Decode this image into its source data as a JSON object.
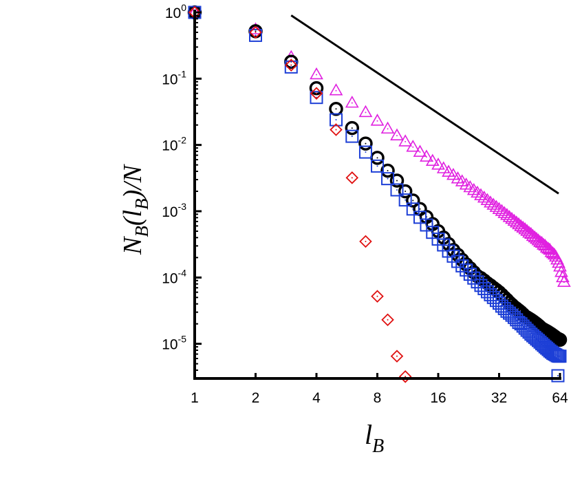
{
  "chart_data": {
    "type": "scatter",
    "xscale": "log2",
    "yscale": "log10",
    "xlim": [
      1,
      64
    ],
    "ylim": [
      3e-06,
      1
    ],
    "xticks": [
      {
        "value": 1,
        "label": "1"
      },
      {
        "value": 2,
        "label": "2"
      },
      {
        "value": 4,
        "label": "4"
      },
      {
        "value": 8,
        "label": "8"
      },
      {
        "value": 16,
        "label": "16"
      },
      {
        "value": 32,
        "label": "32"
      },
      {
        "value": 64,
        "label": "64"
      }
    ],
    "yticks": [
      {
        "value": 1,
        "base": "10",
        "exp": "0"
      },
      {
        "value": 0.1,
        "base": "10",
        "exp": "-1"
      },
      {
        "value": 0.01,
        "base": "10",
        "exp": "-2"
      },
      {
        "value": 0.001,
        "base": "10",
        "exp": "-3"
      },
      {
        "value": 0.0001,
        "base": "10",
        "exp": "-4"
      },
      {
        "value": 1e-05,
        "base": "10",
        "exp": "-5"
      }
    ],
    "xlabel": {
      "main": "l",
      "sub": "B"
    },
    "ylabel": {
      "p1": "N",
      "p2": "B",
      "p3": "(",
      "p4": "l",
      "p5": "B",
      "p6": ")/N"
    },
    "grid": false,
    "legend": "none",
    "reference_line": {
      "x": [
        3,
        63
      ],
      "y": [
        0.9,
        0.00185
      ],
      "color": "#000000"
    },
    "series": [
      {
        "marker": "triangle",
        "color": "#e020e0",
        "points": [
          [
            1,
            1
          ],
          [
            2,
            0.55
          ],
          [
            3,
            0.21
          ],
          [
            4,
            0.115
          ],
          [
            5,
            0.066
          ],
          [
            6,
            0.043
          ],
          [
            7,
            0.031
          ],
          [
            8,
            0.023
          ],
          [
            9,
            0.0175
          ],
          [
            10,
            0.0138
          ],
          [
            11,
            0.0112
          ],
          [
            12,
            0.0093
          ],
          [
            13,
            0.0078
          ],
          [
            14,
            0.0066
          ],
          [
            15,
            0.0057
          ],
          [
            16,
            0.005
          ],
          [
            17,
            0.0044
          ],
          [
            18,
            0.0039
          ],
          [
            19,
            0.0035
          ],
          [
            20,
            0.0031
          ],
          [
            21,
            0.0028
          ],
          [
            22,
            0.0025
          ],
          [
            23,
            0.00228
          ],
          [
            24,
            0.00207
          ],
          [
            25,
            0.00189
          ],
          [
            26,
            0.00173
          ],
          [
            27,
            0.00159
          ],
          [
            28,
            0.00146
          ],
          [
            29,
            0.00134
          ],
          [
            30,
            0.00124
          ],
          [
            31,
            0.00115
          ],
          [
            32,
            0.00107
          ],
          [
            33,
            0.001
          ],
          [
            34,
            0.00093
          ],
          [
            35,
            0.00087
          ],
          [
            36,
            0.00081
          ],
          [
            37,
            0.00076
          ],
          [
            38,
            0.00071
          ],
          [
            39,
            0.00067
          ],
          [
            40,
            0.00063
          ],
          [
            41,
            0.00059
          ],
          [
            42,
            0.00056
          ],
          [
            43,
            0.00053
          ],
          [
            44,
            0.0005
          ],
          [
            45,
            0.00047
          ],
          [
            46,
            0.00045
          ],
          [
            47,
            0.00042
          ],
          [
            48,
            0.0004
          ],
          [
            49,
            0.00038
          ],
          [
            50,
            0.00036
          ],
          [
            51,
            0.00034
          ],
          [
            52,
            0.00033
          ],
          [
            53,
            0.00031
          ],
          [
            54,
            0.0003
          ],
          [
            55,
            0.00028
          ],
          [
            56,
            0.00027
          ],
          [
            57,
            0.00026
          ],
          [
            58,
            0.00024
          ],
          [
            59,
            0.00023
          ],
          [
            60,
            0.00022
          ],
          [
            61,
            0.000205
          ],
          [
            62,
            0.000185
          ],
          [
            63,
            0.000165
          ],
          [
            64,
            0.000145
          ],
          [
            65,
            0.00012
          ],
          [
            66,
            0.0001
          ],
          [
            67,
            8.5e-05
          ]
        ]
      },
      {
        "marker": "circle",
        "color": "#000000",
        "points": [
          [
            1,
            1
          ],
          [
            2,
            0.52
          ],
          [
            3,
            0.18
          ],
          [
            4,
            0.072
          ],
          [
            5,
            0.035
          ],
          [
            6,
            0.018
          ],
          [
            7,
            0.0105
          ],
          [
            8,
            0.0064
          ],
          [
            9,
            0.0041
          ],
          [
            10,
            0.0029
          ],
          [
            11,
            0.002
          ],
          [
            12,
            0.00145
          ],
          [
            13,
            0.00108
          ],
          [
            14,
            0.00082
          ],
          [
            15,
            0.00064
          ],
          [
            16,
            0.0005
          ],
          [
            17,
            0.0004
          ],
          [
            18,
            0.00032
          ],
          [
            19,
            0.00026
          ],
          [
            20,
            0.00022
          ],
          [
            21,
            0.000185
          ],
          [
            22,
            0.000158
          ],
          [
            23,
            0.000138
          ],
          [
            24,
            0.00012
          ],
          [
            25,
            0.000105
          ],
          [
            26,
            9.8e-05
          ],
          [
            27,
            9e-05
          ],
          [
            28,
            8.2e-05
          ],
          [
            29,
            7.6e-05
          ],
          [
            30,
            7e-05
          ],
          [
            31,
            6.5e-05
          ],
          [
            32,
            6e-05
          ],
          [
            33,
            5.5e-05
          ],
          [
            34,
            5e-05
          ],
          [
            35,
            4.6e-05
          ],
          [
            36,
            4.2e-05
          ],
          [
            37,
            3.9e-05
          ],
          [
            38,
            3.6e-05
          ],
          [
            39,
            3.4e-05
          ],
          [
            40,
            3.2e-05
          ],
          [
            41,
            3e-05
          ],
          [
            42,
            2.8e-05
          ],
          [
            43,
            2.6e-05
          ],
          [
            44,
            2.5e-05
          ],
          [
            45,
            2.4e-05
          ],
          [
            46,
            2.3e-05
          ],
          [
            47,
            2.2e-05
          ],
          [
            48,
            2.1e-05
          ],
          [
            49,
            2e-05
          ],
          [
            50,
            1.9e-05
          ],
          [
            51,
            1.8e-05
          ],
          [
            52,
            1.7e-05
          ],
          [
            53,
            1.65e-05
          ],
          [
            54,
            1.6e-05
          ],
          [
            55,
            1.55e-05
          ],
          [
            56,
            1.5e-05
          ],
          [
            57,
            1.45e-05
          ],
          [
            58,
            1.4e-05
          ],
          [
            59,
            1.35e-05
          ],
          [
            60,
            1.3e-05
          ],
          [
            61,
            1.25e-05
          ],
          [
            62,
            1.2e-05
          ],
          [
            63,
            1.18e-05
          ],
          [
            64,
            1.15e-05
          ]
        ]
      },
      {
        "marker": "square",
        "color": "#1d3fd6",
        "points": [
          [
            1,
            1
          ],
          [
            2,
            0.45
          ],
          [
            3,
            0.15
          ],
          [
            4,
            0.052
          ],
          [
            5,
            0.024
          ],
          [
            6,
            0.0135
          ],
          [
            7,
            0.0078
          ],
          [
            8,
            0.0048
          ],
          [
            9,
            0.0031
          ],
          [
            10,
            0.0021
          ],
          [
            11,
            0.00148
          ],
          [
            12,
            0.00108
          ],
          [
            13,
            0.00081
          ],
          [
            14,
            0.00062
          ],
          [
            15,
            0.00048
          ],
          [
            16,
            0.00038
          ],
          [
            17,
            0.00031
          ],
          [
            18,
            0.00025
          ],
          [
            19,
            0.00021
          ],
          [
            20,
            0.000175
          ],
          [
            21,
            0.00015
          ],
          [
            22,
            0.00013
          ],
          [
            23,
            0.000112
          ],
          [
            24,
            9.8e-05
          ],
          [
            25,
            8.6e-05
          ],
          [
            26,
            7.6e-05
          ],
          [
            27,
            6.8e-05
          ],
          [
            28,
            6.1e-05
          ],
          [
            29,
            5.5e-05
          ],
          [
            30,
            5e-05
          ],
          [
            31,
            4.5e-05
          ],
          [
            32,
            4.1e-05
          ],
          [
            33,
            3.7e-05
          ],
          [
            34,
            3.4e-05
          ],
          [
            35,
            3.1e-05
          ],
          [
            36,
            2.9e-05
          ],
          [
            37,
            2.7e-05
          ],
          [
            38,
            2.5e-05
          ],
          [
            39,
            2.3e-05
          ],
          [
            40,
            2.1e-05
          ],
          [
            41,
            2e-05
          ],
          [
            42,
            1.85e-05
          ],
          [
            43,
            1.72e-05
          ],
          [
            44,
            1.6e-05
          ],
          [
            45,
            1.5e-05
          ],
          [
            46,
            1.4e-05
          ],
          [
            47,
            1.32e-05
          ],
          [
            48,
            1.25e-05
          ],
          [
            49,
            1.18e-05
          ],
          [
            50,
            1.12e-05
          ],
          [
            51,
            1.06e-05
          ],
          [
            52,
            1e-05
          ],
          [
            53,
            9.5e-06
          ],
          [
            54,
            9e-06
          ],
          [
            55,
            8.6e-06
          ],
          [
            56,
            8.2e-06
          ],
          [
            57,
            7.8e-06
          ],
          [
            58,
            7.5e-06
          ],
          [
            59,
            7.2e-06
          ],
          [
            60,
            7e-06
          ],
          [
            61,
            6.8e-06
          ],
          [
            62,
            6.6e-06
          ],
          [
            63,
            6.5e-06
          ],
          [
            64,
            6.5e-06
          ],
          [
            62.5,
            3.3e-06
          ]
        ]
      },
      {
        "marker": "diamond",
        "color": "#e01010",
        "points": [
          [
            1,
            1
          ],
          [
            2,
            0.5
          ],
          [
            3,
            0.16
          ],
          [
            4,
            0.06
          ],
          [
            5,
            0.017
          ],
          [
            6,
            0.0032
          ],
          [
            7,
            0.00035
          ],
          [
            8,
            5.2e-05
          ],
          [
            9,
            2.3e-05
          ],
          [
            10,
            6.5e-06
          ],
          [
            11,
            3.2e-06
          ]
        ]
      }
    ]
  }
}
